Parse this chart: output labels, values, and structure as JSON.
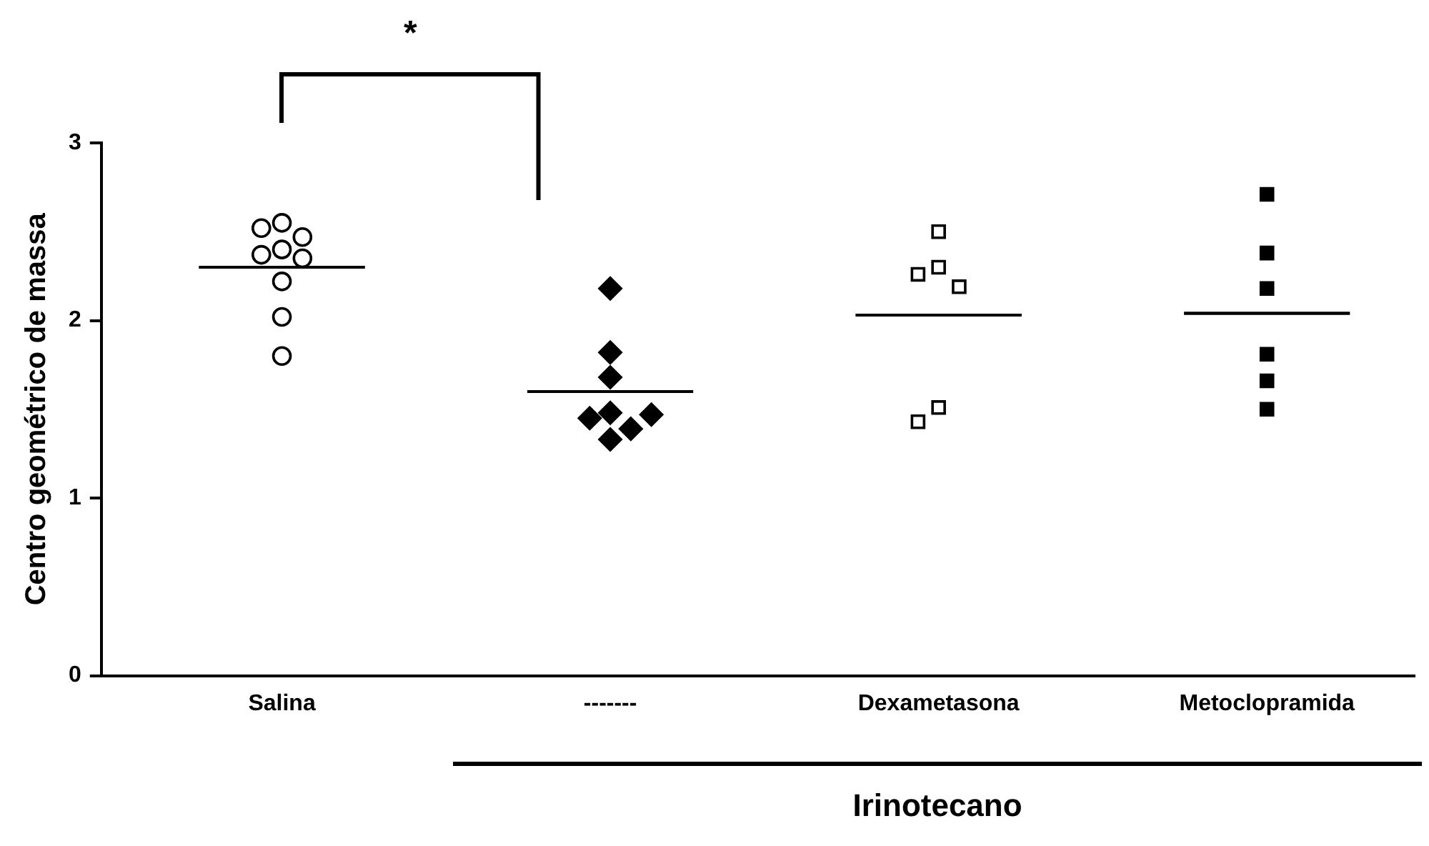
{
  "chart_data": {
    "type": "scatter",
    "ylabel": "Centro geométrico de massa",
    "categories": [
      "Salina",
      "-------",
      "Dexametasona",
      "Metoclopramida"
    ],
    "ylim": [
      0,
      3
    ],
    "yticks": [
      0,
      1,
      2,
      3
    ],
    "grid": false,
    "legend": false,
    "series": [
      {
        "type": "scatter",
        "marker": "circle",
        "color": "#000000",
        "x": [
          "Salina",
          "Salina",
          "Salina",
          "Salina",
          "Salina",
          "Salina",
          "Salina",
          "Salina",
          "Salina"
        ],
        "values": [
          2.55,
          2.52,
          2.47,
          2.4,
          2.37,
          2.35,
          2.22,
          2.02,
          1.8
        ]
      },
      {
        "type": "scatter",
        "marker": "diamond",
        "color": "#000000",
        "x": [
          "-------",
          "-------",
          "-------",
          "-------",
          "-------",
          "-------",
          "-------",
          "-------"
        ],
        "values": [
          2.18,
          1.82,
          1.68,
          1.48,
          1.45,
          1.47,
          1.39,
          1.33
        ]
      },
      {
        "type": "scatter",
        "marker": "square",
        "color": "#000000",
        "x": [
          "Dexametasona",
          "Dexametasona",
          "Dexametasona",
          "Dexametasona",
          "Dexametasona",
          "Dexametasona"
        ],
        "values": [
          2.5,
          2.3,
          2.26,
          2.19,
          1.51,
          1.43
        ]
      },
      {
        "type": "scatter",
        "marker": "square",
        "color": "#000000",
        "x": [
          "Metoclopramida",
          "Metoclopramida",
          "Metoclopramida",
          "Metoclopramida",
          "Metoclopramida",
          "Metoclopramida"
        ],
        "values": [
          2.71,
          2.38,
          2.18,
          1.81,
          1.66,
          1.5
        ]
      },
      {
        "type": "box",
        "color": "#000000",
        "boxes": [
          {
            "low": 2.3,
            "q1": 2.3,
            "median": 2.3,
            "q3": 2.3,
            "high": 2.3
          },
          {
            "low": 1.6,
            "q1": 1.6,
            "median": 1.6,
            "q3": 1.6,
            "high": 1.6
          },
          {
            "low": 2.03,
            "q1": 2.03,
            "median": 2.03,
            "q3": 2.03,
            "high": 2.03
          },
          {
            "low": 2.04,
            "q1": 2.04,
            "median": 2.04,
            "q3": 2.04,
            "high": 2.04
          }
        ]
      }
    ],
    "annotations": [
      "*",
      "Irinotecano"
    ]
  }
}
